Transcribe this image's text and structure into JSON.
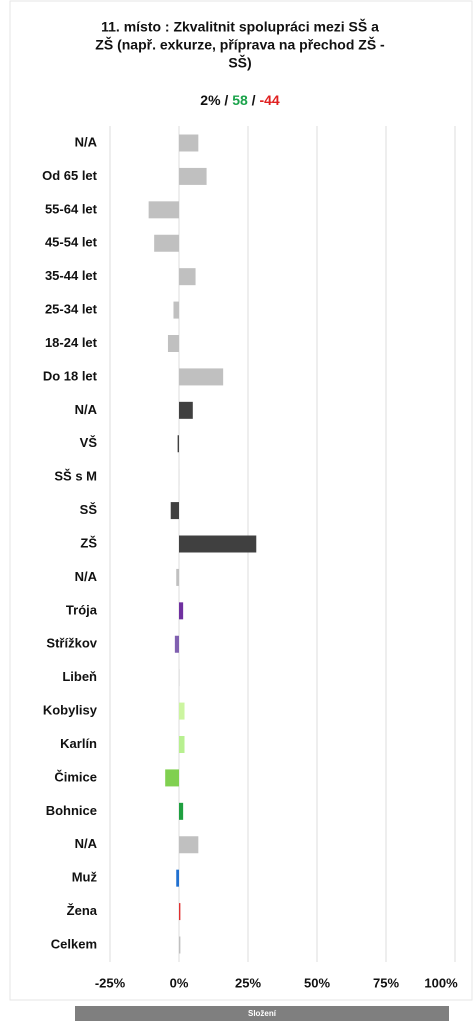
{
  "chart_data": {
    "type": "hbar",
    "title_lines": [
      "11. místo : Zkvalitnit spolupráci mezi SŠ a",
      "ZŠ (např. exkurze, příprava na přechod ZŠ -",
      "SŠ)"
    ],
    "summary": [
      {
        "text": "2%",
        "color": "#111111"
      },
      {
        "text": "58",
        "color": "#1aa34a"
      },
      {
        "text": "-44",
        "color": "#e02020"
      }
    ],
    "separator": "/",
    "categories": [
      "N/A",
      "Od 65 let",
      "55-64 let",
      "45-54 let",
      "35-44 let",
      "25-34 let",
      "18-24 let",
      "Do 18 let",
      "N/A",
      "VŠ",
      "SŠ s M",
      "SŠ",
      "ZŠ",
      "N/A",
      "Trója",
      "Střížkov",
      "Libeň",
      "Kobylisy",
      "Karlín",
      "Čimice",
      "Bohnice",
      "N/A",
      "Muž",
      "Žena",
      "Celkem"
    ],
    "values": [
      7,
      10,
      -11,
      -9,
      6,
      -2,
      -4,
      16,
      5,
      -0.5,
      0,
      -3,
      28,
      -1,
      1.5,
      -1.5,
      0.3,
      2,
      2,
      -5,
      1.5,
      7,
      -1,
      0.5,
      0.5
    ],
    "colors": [
      "#c0c0c0",
      "#c0c0c0",
      "#c0c0c0",
      "#c0c0c0",
      "#c0c0c0",
      "#c0c0c0",
      "#c0c0c0",
      "#c0c0c0",
      "#404040",
      "#404040",
      "#404040",
      "#404040",
      "#404040",
      "#c0c0c0",
      "#7030a0",
      "#8060b0",
      "#e0e0e0",
      "#ccf5a0",
      "#b8f090",
      "#80d050",
      "#20a040",
      "#c0c0c0",
      "#2070d0",
      "#e03030",
      "#c0c0c0"
    ],
    "xlim": [
      -25,
      100
    ],
    "xticks": [
      {
        "value": -25,
        "label": "-25%"
      },
      {
        "value": 0,
        "label": "0%"
      },
      {
        "value": 25,
        "label": "25%"
      },
      {
        "value": 50,
        "label": "50%"
      },
      {
        "value": 75,
        "label": "75%"
      },
      {
        "value": 100,
        "label": "100%"
      }
    ],
    "grid": true,
    "footer": "Složení"
  }
}
